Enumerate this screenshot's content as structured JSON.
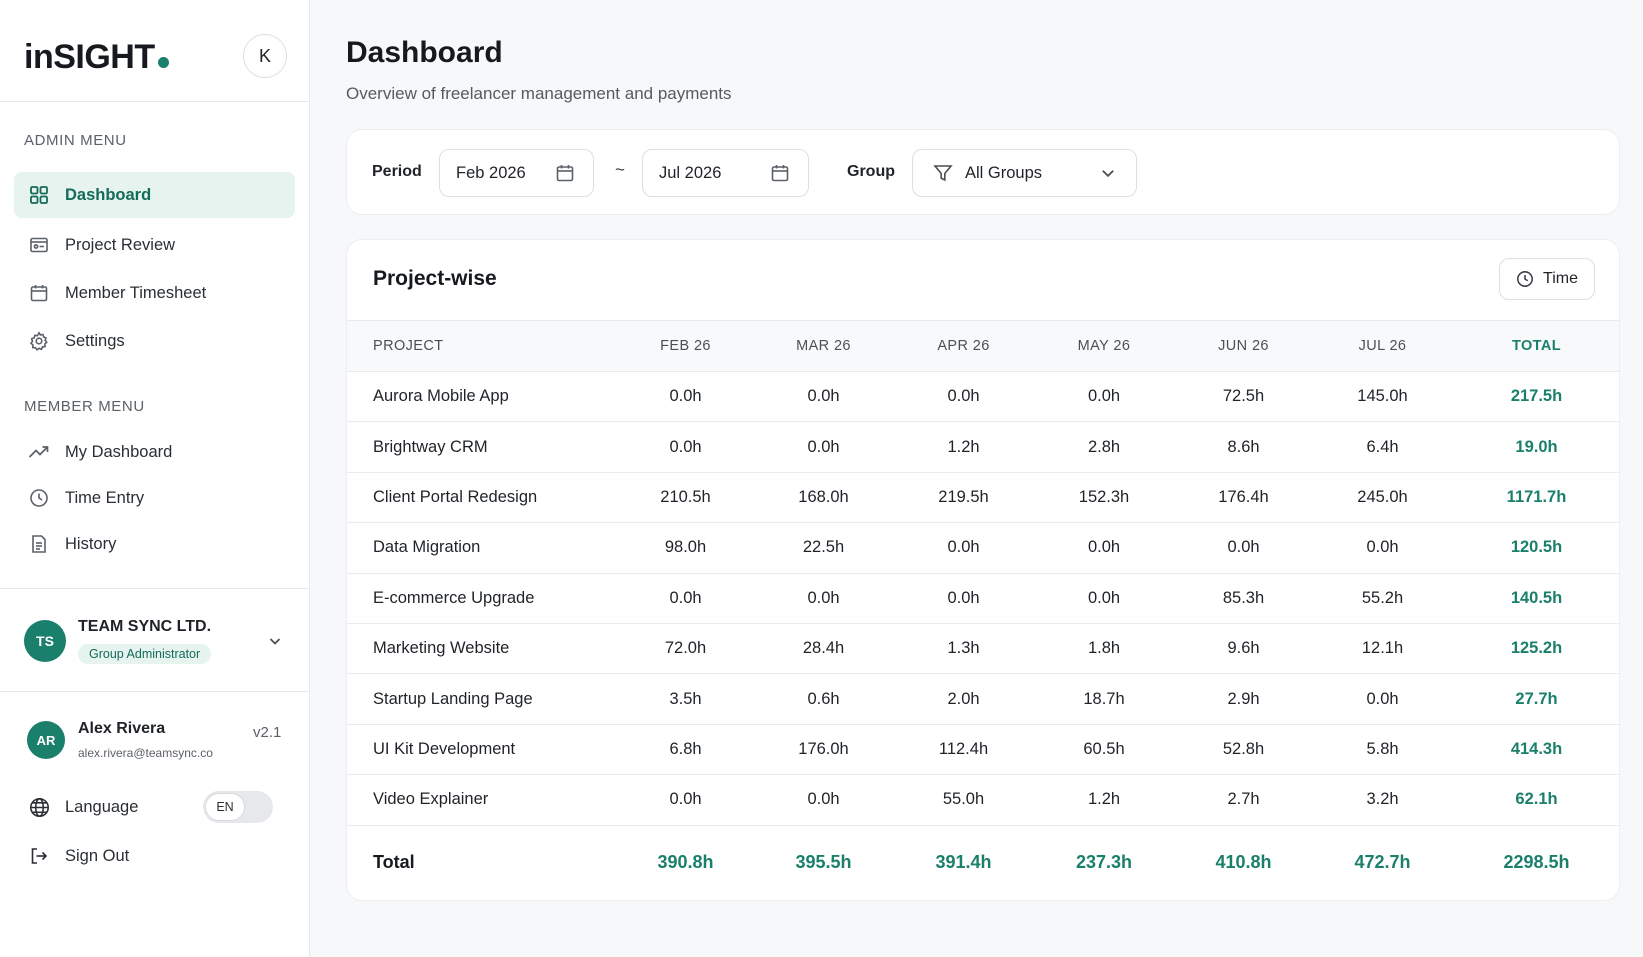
{
  "brand": {
    "logo": "inSIGHT",
    "collapse_label": "K"
  },
  "admin_menu": {
    "heading": "ADMIN MENU",
    "items": [
      {
        "label": "Dashboard",
        "icon": "grid-icon",
        "active": true
      },
      {
        "label": "Project Review",
        "icon": "project-card-icon"
      },
      {
        "label": "Member Timesheet",
        "icon": "calendar-icon"
      },
      {
        "label": "Settings",
        "icon": "gear-icon"
      }
    ]
  },
  "member_menu": {
    "heading": "MEMBER MENU",
    "items": [
      {
        "label": "My Dashboard",
        "icon": "trending-up-icon"
      },
      {
        "label": "Time Entry",
        "icon": "clock-icon"
      },
      {
        "label": "History",
        "icon": "document-icon"
      }
    ]
  },
  "org": {
    "initials": "TS",
    "name": "TEAM SYNC LTD.",
    "role": "Group Administrator"
  },
  "user": {
    "initials": "AR",
    "name": "Alex Rivera",
    "email": "alex.rivera@teamsync.co",
    "version": "v2.1"
  },
  "language": {
    "label": "Language",
    "value": "EN"
  },
  "signout": {
    "label": "Sign Out"
  },
  "page": {
    "title": "Dashboard",
    "subtitle": "Overview of freelancer management and payments"
  },
  "filters": {
    "period_label": "Period",
    "start": "Feb 2026",
    "separator": "~",
    "end": "Jul 2026",
    "group_label": "Group",
    "group_value": "All Groups"
  },
  "project_table": {
    "title": "Project-wise",
    "toggle_label": "Time",
    "columns": [
      "PROJECT",
      "FEB 26",
      "MAR 26",
      "APR 26",
      "MAY 26",
      "JUN 26",
      "JUL 26",
      "TOTAL"
    ],
    "rows": [
      [
        "Aurora Mobile App",
        "0.0h",
        "0.0h",
        "0.0h",
        "0.0h",
        "72.5h",
        "145.0h",
        "217.5h"
      ],
      [
        "Brightway CRM",
        "0.0h",
        "0.0h",
        "1.2h",
        "2.8h",
        "8.6h",
        "6.4h",
        "19.0h"
      ],
      [
        "Client Portal Redesign",
        "210.5h",
        "168.0h",
        "219.5h",
        "152.3h",
        "176.4h",
        "245.0h",
        "1171.7h"
      ],
      [
        "Data Migration",
        "98.0h",
        "22.5h",
        "0.0h",
        "0.0h",
        "0.0h",
        "0.0h",
        "120.5h"
      ],
      [
        "E-commerce Upgrade",
        "0.0h",
        "0.0h",
        "0.0h",
        "0.0h",
        "85.3h",
        "55.2h",
        "140.5h"
      ],
      [
        "Marketing Website",
        "72.0h",
        "28.4h",
        "1.3h",
        "1.8h",
        "9.6h",
        "12.1h",
        "125.2h"
      ],
      [
        "Startup Landing Page",
        "3.5h",
        "0.6h",
        "2.0h",
        "18.7h",
        "2.9h",
        "0.0h",
        "27.7h"
      ],
      [
        "UI Kit Development",
        "6.8h",
        "176.0h",
        "112.4h",
        "60.5h",
        "52.8h",
        "5.8h",
        "414.3h"
      ],
      [
        "Video Explainer",
        "0.0h",
        "0.0h",
        "55.0h",
        "1.2h",
        "2.7h",
        "3.2h",
        "62.1h"
      ]
    ],
    "totals": [
      "Total",
      "390.8h",
      "395.5h",
      "391.4h",
      "237.3h",
      "410.8h",
      "472.7h",
      "2298.5h"
    ]
  },
  "colors": {
    "accent": "#1a7f6b",
    "active_bg": "#e6f3ef",
    "background": "#f7f8fa"
  }
}
